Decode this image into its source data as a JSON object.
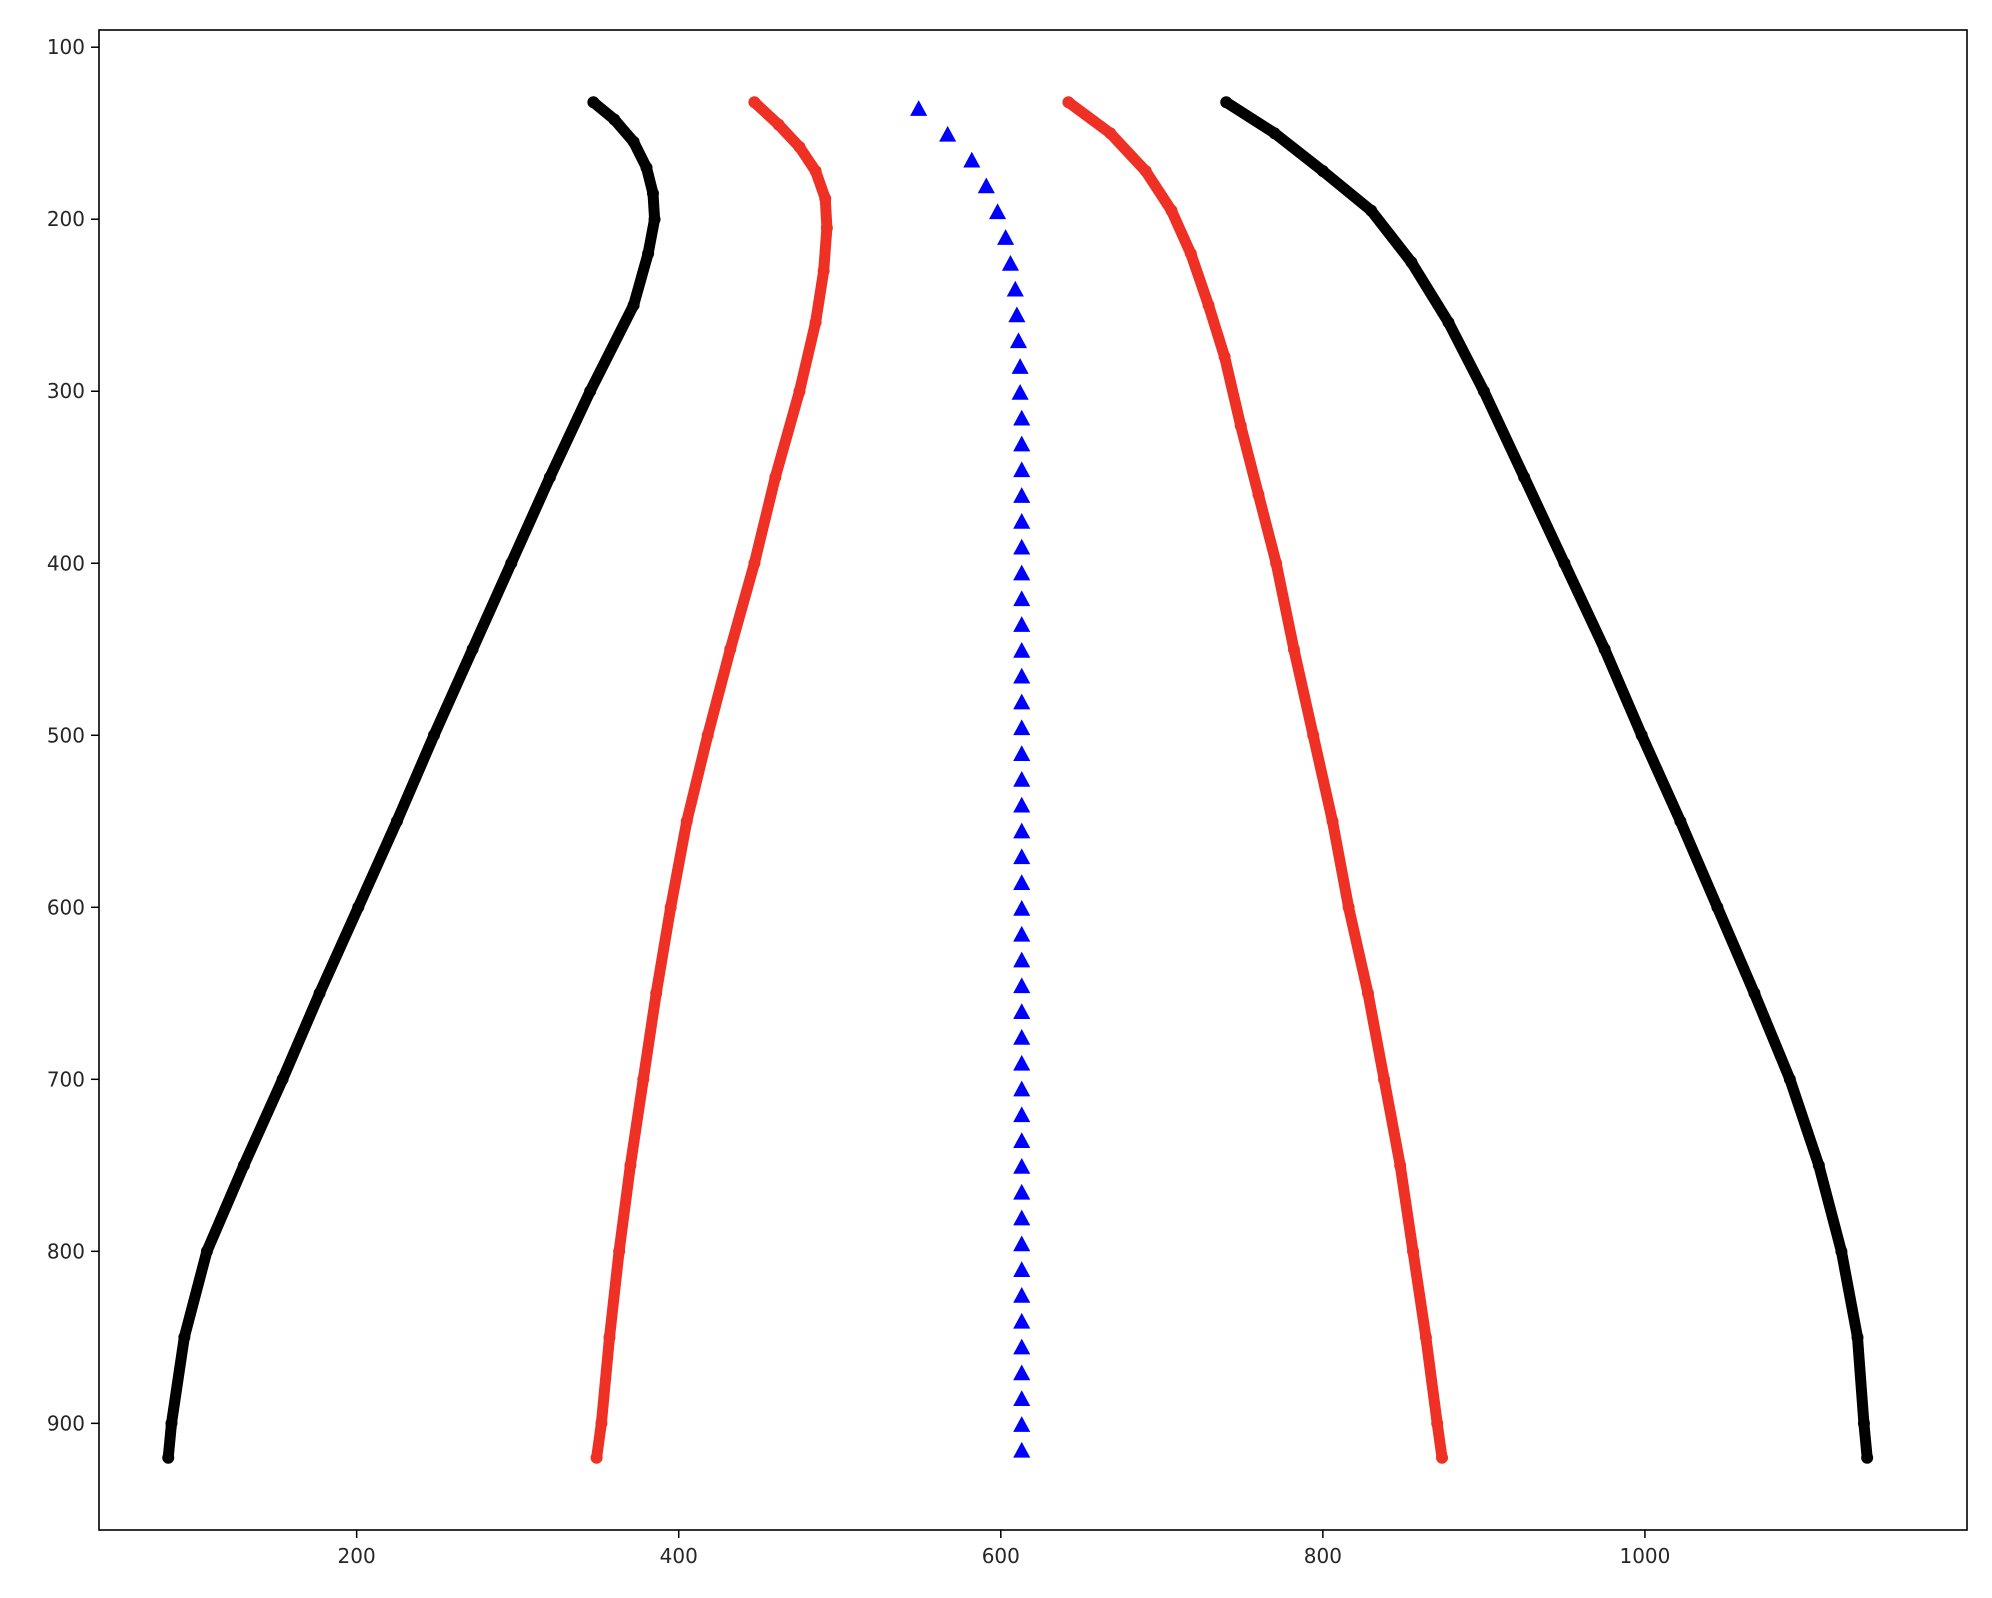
{
  "chart_data": {
    "type": "scatter",
    "title": "",
    "xlabel": "",
    "ylabel": "",
    "xlim": [
      40,
      1200
    ],
    "ylim": [
      962,
      90
    ],
    "y_inverted": true,
    "grid": false,
    "legend": "none",
    "x_ticks": [
      200,
      400,
      600,
      800,
      1000
    ],
    "y_ticks": [
      100,
      200,
      300,
      400,
      500,
      600,
      700,
      800,
      900
    ],
    "series": [
      {
        "color": "#000000",
        "marker": "circle",
        "points": [
          [
            347,
            132
          ],
          [
            360,
            142
          ],
          [
            372,
            155
          ],
          [
            380,
            170
          ],
          [
            384,
            185
          ],
          [
            385,
            200
          ],
          [
            381,
            220
          ],
          [
            372,
            250
          ],
          [
            345,
            300
          ],
          [
            320,
            350
          ],
          [
            296,
            400
          ],
          [
            272,
            450
          ],
          [
            248,
            500
          ],
          [
            225,
            550
          ],
          [
            201,
            600
          ],
          [
            177,
            650
          ],
          [
            154,
            700
          ],
          [
            130,
            750
          ],
          [
            107,
            800
          ],
          [
            93,
            850
          ],
          [
            85,
            900
          ],
          [
            83,
            920
          ]
        ]
      },
      {
        "color": "#ee3124",
        "marker": "circle",
        "points": [
          [
            447,
            132
          ],
          [
            462,
            145
          ],
          [
            475,
            158
          ],
          [
            485,
            172
          ],
          [
            491,
            188
          ],
          [
            492,
            205
          ],
          [
            490,
            230
          ],
          [
            485,
            260
          ],
          [
            475,
            300
          ],
          [
            460,
            350
          ],
          [
            447,
            400
          ],
          [
            432,
            450
          ],
          [
            418,
            500
          ],
          [
            405,
            550
          ],
          [
            395,
            600
          ],
          [
            386,
            650
          ],
          [
            378,
            700
          ],
          [
            370,
            750
          ],
          [
            363,
            800
          ],
          [
            357,
            850
          ],
          [
            352,
            900
          ],
          [
            349,
            920
          ]
        ]
      },
      {
        "color": "#0000ff",
        "marker": "triangle",
        "points": [
          [
            549,
            136
          ],
          [
            567,
            151
          ],
          [
            582,
            166
          ],
          [
            591,
            181
          ],
          [
            598,
            196
          ],
          [
            603,
            211
          ],
          [
            606,
            226
          ],
          [
            609,
            241
          ],
          [
            610,
            256
          ],
          [
            611,
            271
          ],
          [
            612,
            286
          ],
          [
            612,
            301
          ],
          [
            613,
            316
          ],
          [
            613,
            331
          ],
          [
            613,
            346
          ],
          [
            613,
            361
          ],
          [
            613,
            376
          ],
          [
            613,
            391
          ],
          [
            613,
            406
          ],
          [
            613,
            421
          ],
          [
            613,
            436
          ],
          [
            613,
            451
          ],
          [
            613,
            466
          ],
          [
            613,
            481
          ],
          [
            613,
            496
          ],
          [
            613,
            511
          ],
          [
            613,
            526
          ],
          [
            613,
            541
          ],
          [
            613,
            556
          ],
          [
            613,
            571
          ],
          [
            613,
            586
          ],
          [
            613,
            601
          ],
          [
            613,
            616
          ],
          [
            613,
            631
          ],
          [
            613,
            646
          ],
          [
            613,
            661
          ],
          [
            613,
            676
          ],
          [
            613,
            691
          ],
          [
            613,
            706
          ],
          [
            613,
            721
          ],
          [
            613,
            736
          ],
          [
            613,
            751
          ],
          [
            613,
            766
          ],
          [
            613,
            781
          ],
          [
            613,
            796
          ],
          [
            613,
            811
          ],
          [
            613,
            826
          ],
          [
            613,
            841
          ],
          [
            613,
            856
          ],
          [
            613,
            871
          ],
          [
            613,
            886
          ],
          [
            613,
            901
          ],
          [
            613,
            916
          ]
        ]
      },
      {
        "color": "#ee3124",
        "marker": "circle",
        "points": [
          [
            642,
            132
          ],
          [
            668,
            150
          ],
          [
            690,
            172
          ],
          [
            706,
            195
          ],
          [
            718,
            220
          ],
          [
            729,
            250
          ],
          [
            739,
            280
          ],
          [
            749,
            320
          ],
          [
            760,
            360
          ],
          [
            771,
            400
          ],
          [
            782,
            450
          ],
          [
            794,
            500
          ],
          [
            806,
            550
          ],
          [
            816,
            600
          ],
          [
            828,
            650
          ],
          [
            838,
            700
          ],
          [
            848,
            750
          ],
          [
            856,
            800
          ],
          [
            864,
            850
          ],
          [
            871,
            900
          ],
          [
            874,
            920
          ]
        ]
      },
      {
        "color": "#000000",
        "marker": "circle",
        "points": [
          [
            740,
            132
          ],
          [
            770,
            150
          ],
          [
            800,
            172
          ],
          [
            830,
            195
          ],
          [
            855,
            225
          ],
          [
            878,
            260
          ],
          [
            900,
            300
          ],
          [
            925,
            350
          ],
          [
            950,
            400
          ],
          [
            975,
            450
          ],
          [
            998,
            500
          ],
          [
            1022,
            550
          ],
          [
            1045,
            600
          ],
          [
            1068,
            650
          ],
          [
            1090,
            700
          ],
          [
            1108,
            750
          ],
          [
            1122,
            800
          ],
          [
            1132,
            850
          ],
          [
            1136,
            900
          ],
          [
            1138,
            920
          ]
        ]
      }
    ]
  }
}
